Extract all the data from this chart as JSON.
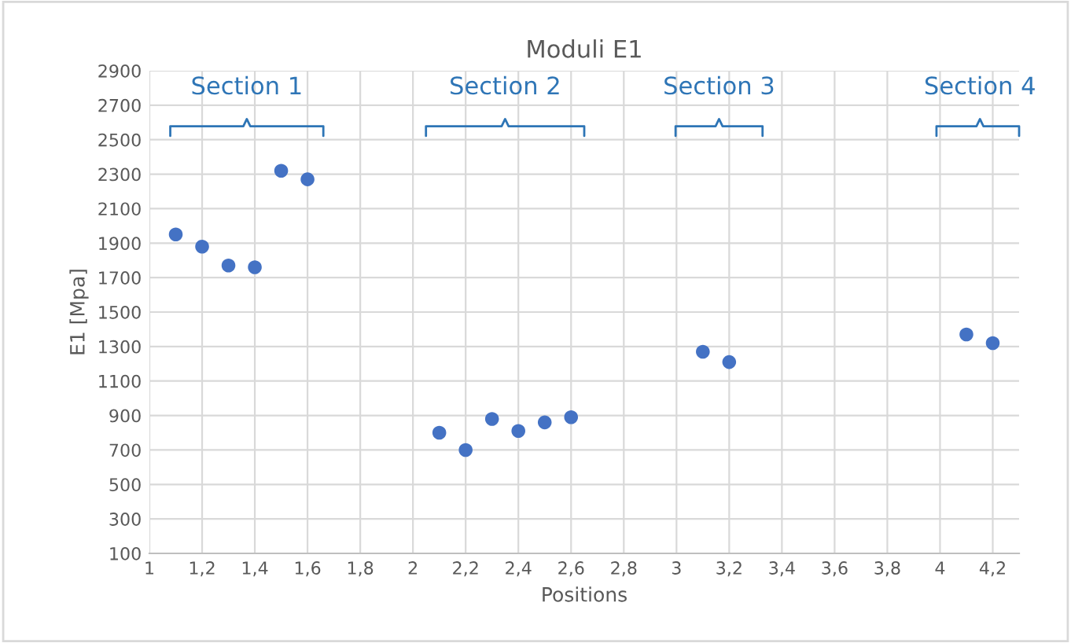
{
  "chart_data": {
    "type": "scatter",
    "title": "Moduli E1",
    "xlabel": "Positions",
    "ylabel": "E1 [Mpa]",
    "x": [
      1.1,
      1.2,
      1.3,
      1.4,
      1.5,
      1.6,
      2.1,
      2.2,
      2.3,
      2.4,
      2.5,
      2.6,
      3.1,
      3.2,
      4.1,
      4.2
    ],
    "series": [
      {
        "color": "#4472c4",
        "values": [
          1950,
          1880,
          1770,
          1760,
          2320,
          2270,
          800,
          700,
          880,
          810,
          860,
          890,
          1270,
          1210,
          1370,
          1320
        ]
      }
    ],
    "xlim": [
      1,
      4.3
    ],
    "ylim": [
      100,
      2900
    ],
    "xticks": [
      1,
      {
        "value": 1.2,
        "label": "1,2"
      },
      {
        "value": 1.4,
        "label": "1,4"
      },
      {
        "value": 1.6,
        "label": "1,6"
      },
      {
        "value": 1.8,
        "label": "1,8"
      },
      2,
      {
        "value": 2.2,
        "label": "2,2"
      },
      {
        "value": 2.4,
        "label": "2,4"
      },
      {
        "value": 2.6,
        "label": "2,6"
      },
      {
        "value": 2.8,
        "label": "2,8"
      },
      3,
      {
        "value": 3.2,
        "label": "3,2"
      },
      {
        "value": 3.4,
        "label": "3,4"
      },
      {
        "value": 3.6,
        "label": "3,6"
      },
      {
        "value": 3.8,
        "label": "3,8"
      },
      4,
      {
        "value": 4.2,
        "label": "4,2"
      }
    ],
    "yticks": [
      100,
      300,
      500,
      700,
      900,
      1100,
      1300,
      1500,
      1700,
      1900,
      2100,
      2300,
      2500,
      2700,
      2900
    ],
    "annotations": [
      "Section 1",
      "Section 2",
      "Section 3",
      "Section 4"
    ],
    "grid": true,
    "marker": "circle",
    "legend": false
  }
}
